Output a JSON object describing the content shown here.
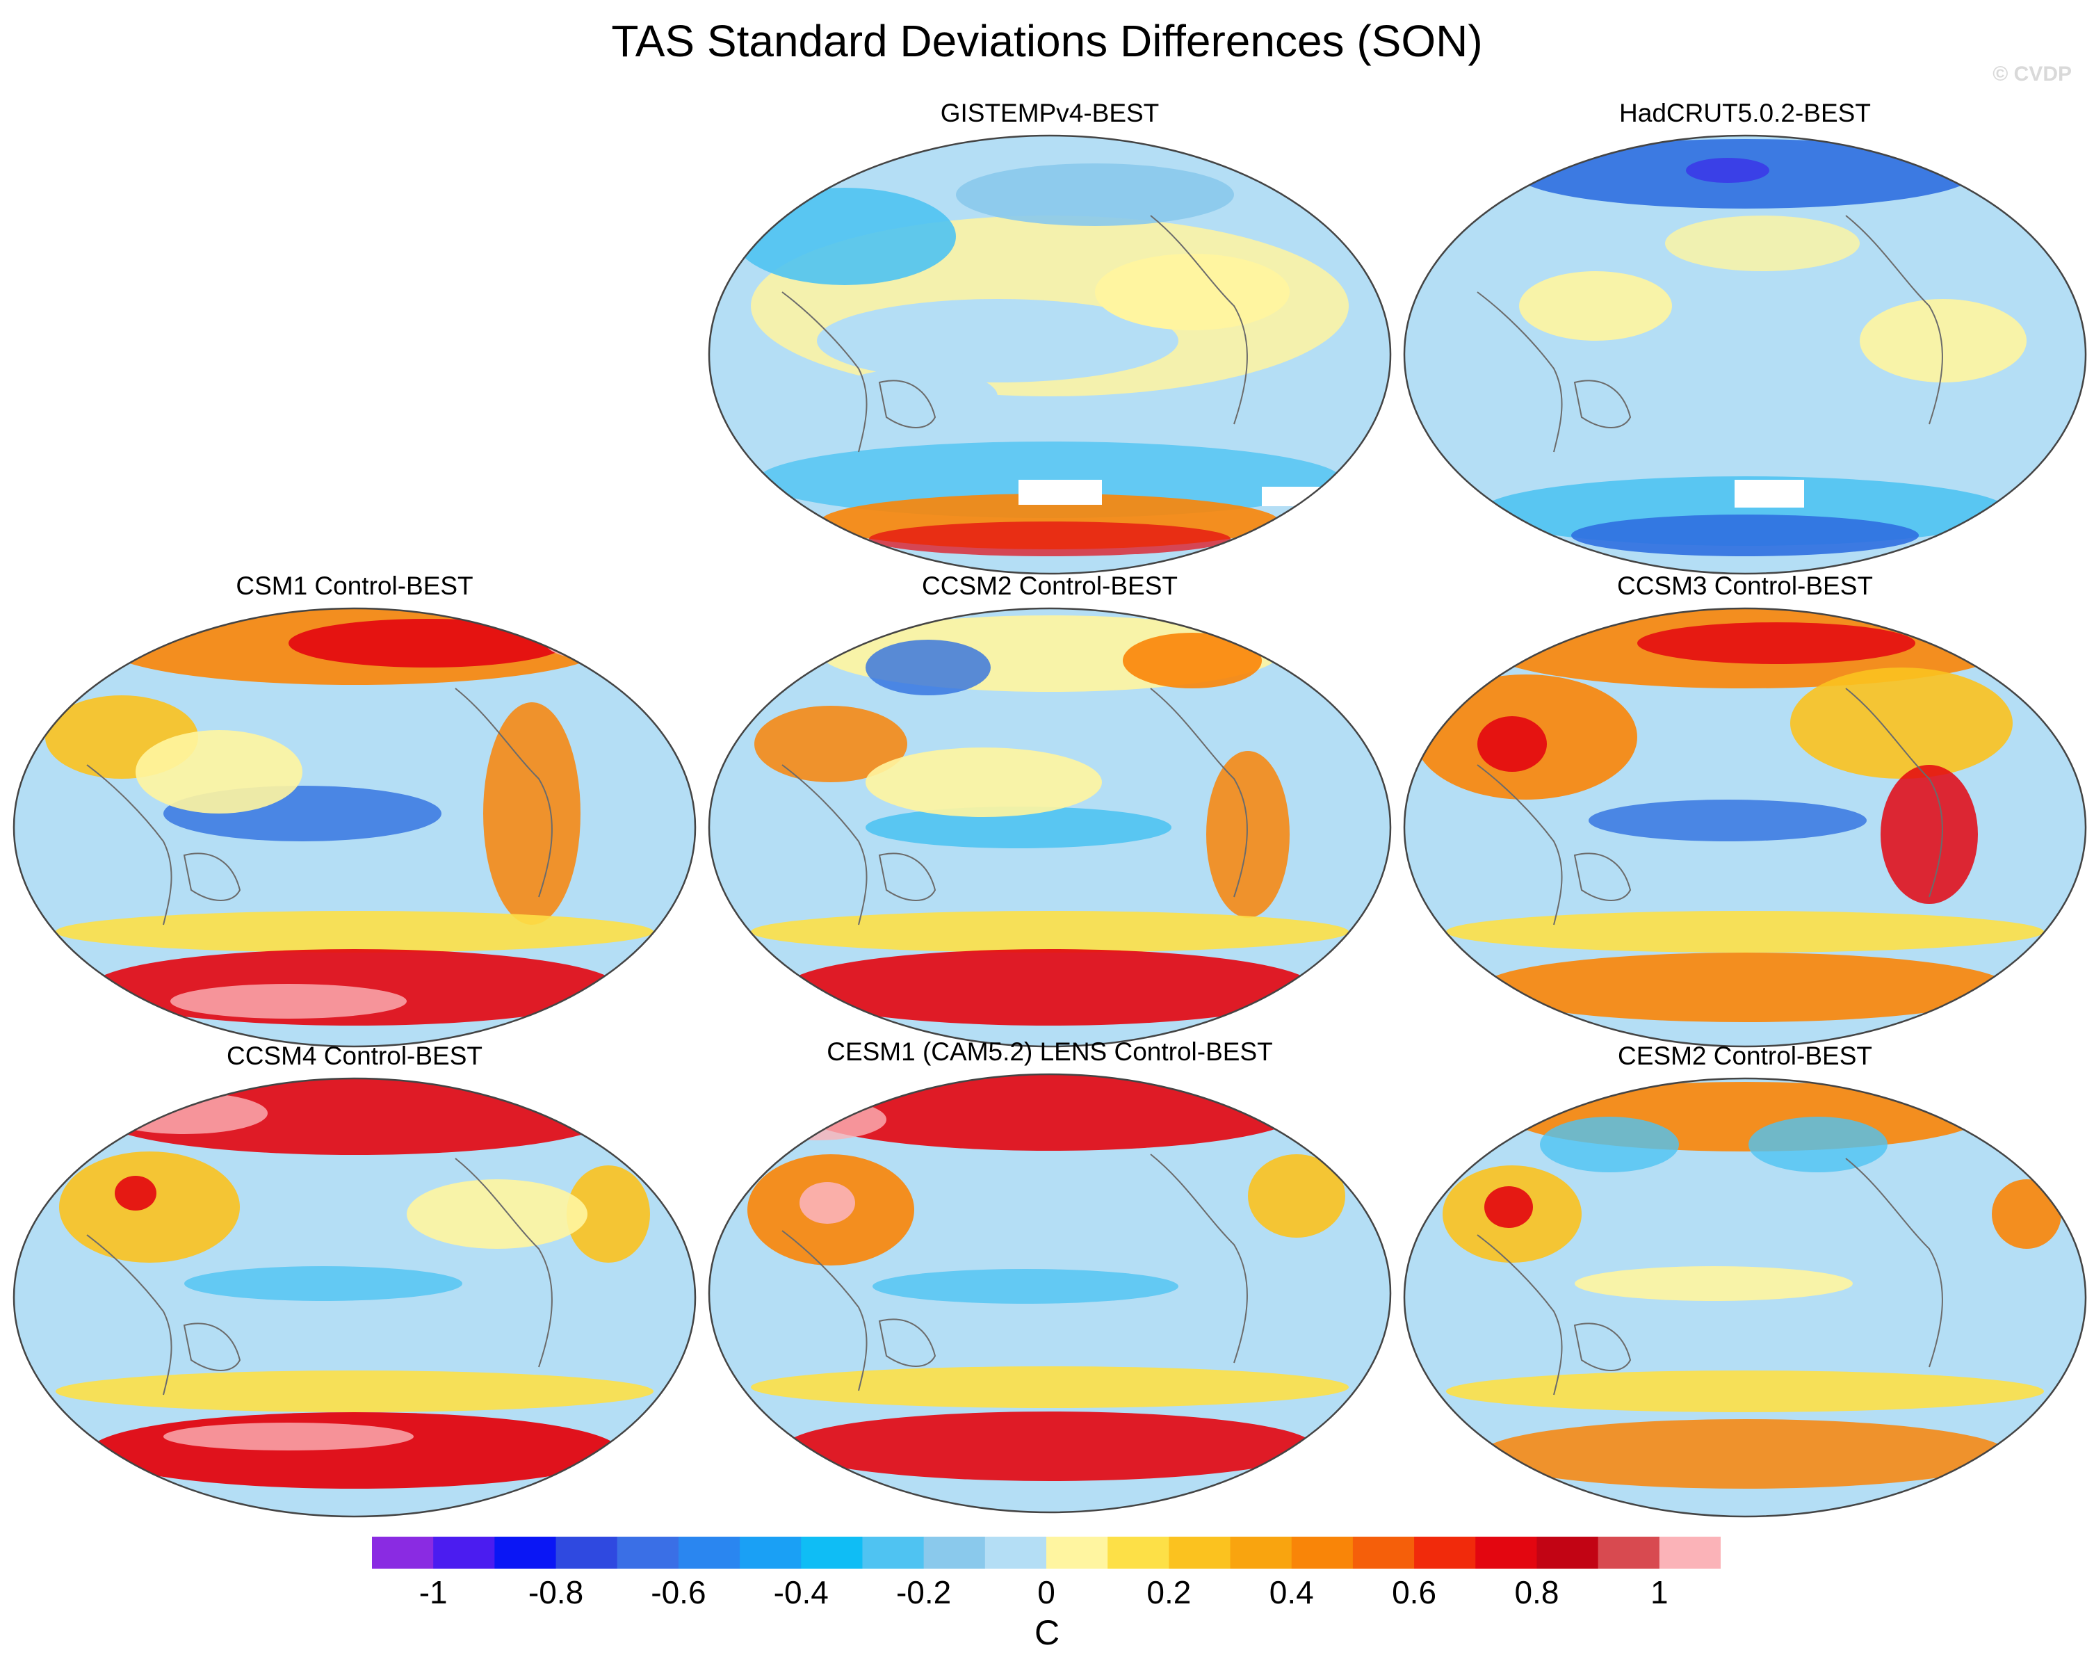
{
  "title": "TAS Standard Deviations Differences (SON)",
  "watermark": "© CVDP",
  "panels": [
    {
      "id": "gistemp",
      "title": "GISTEMPv4-BEST",
      "pattern": "gistemp"
    },
    {
      "id": "hadcrut",
      "title": "HadCRUT5.0.2-BEST",
      "pattern": "hadcrut"
    },
    {
      "id": "csm1",
      "title": "CSM1 Control-BEST",
      "pattern": "csm1"
    },
    {
      "id": "ccsm2",
      "title": "CCSM2 Control-BEST",
      "pattern": "ccsm2"
    },
    {
      "id": "ccsm3",
      "title": "CCSM3 Control-BEST",
      "pattern": "ccsm3"
    },
    {
      "id": "ccsm4",
      "title": "CCSM4 Control-BEST",
      "pattern": "ccsm4"
    },
    {
      "id": "cesm1",
      "title": "CESM1 (CAM5.2) LENS Control-BEST",
      "pattern": "cesm1"
    },
    {
      "id": "cesm2",
      "title": "CESM2 Control-BEST",
      "pattern": "cesm2"
    }
  ],
  "colorbar": {
    "units": "C",
    "colors": [
      "#8a2be2",
      "#4b1cf0",
      "#0a16f5",
      "#2f49e0",
      "#3a6fe6",
      "#2a86f0",
      "#1aa0f5",
      "#0fbdf5",
      "#4fc3f2",
      "#8ac9ec",
      "#b4def5",
      "#fff5a0",
      "#fde047",
      "#fbc21f",
      "#f9a40f",
      "#f98508",
      "#f55f0a",
      "#f12a0b",
      "#e30610",
      "#c20414",
      "#d84a50",
      "#fbb3b8"
    ],
    "tick_labels": [
      "-1",
      "-0.8",
      "-0.6",
      "-0.4",
      "-0.2",
      "0",
      "0.2",
      "0.4",
      "0.6",
      "0.8",
      "1"
    ]
  }
}
